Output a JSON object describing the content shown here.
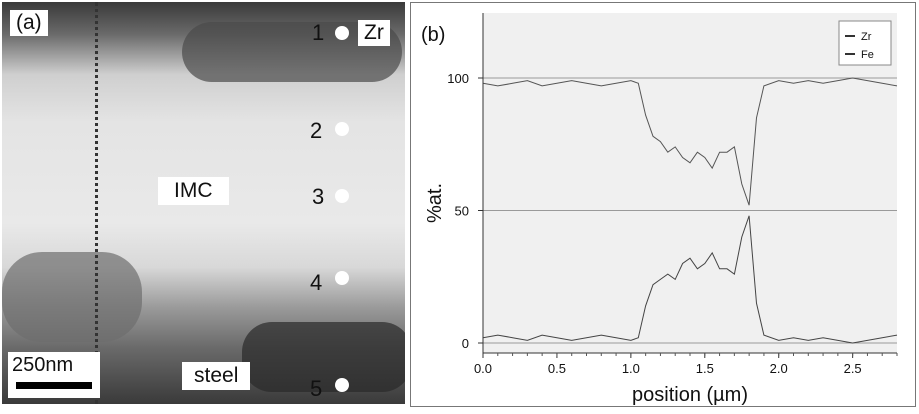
{
  "panel_a": {
    "label": "(a)",
    "zr_label": "Zr",
    "imc_label": "IMC",
    "steel_label": "steel",
    "scale_bar": "250nm",
    "points": [
      "1",
      "2",
      "3",
      "4",
      "5"
    ]
  },
  "panel_b": {
    "label": "(b)"
  },
  "chart_data": {
    "type": "line",
    "xlabel": "position (µm)",
    "ylabel": "%at.",
    "xlim": [
      0,
      2.8
    ],
    "ylim": [
      0,
      100
    ],
    "xticks": [
      "0.0",
      "0.5",
      "1.0",
      "1.5",
      "2.0",
      "2.5"
    ],
    "yticks": [
      "0",
      "50",
      "100"
    ],
    "grid": "horizontal",
    "legend_position": "top-right",
    "series": [
      {
        "name": "Zr",
        "x": [
          0.0,
          0.1,
          0.2,
          0.3,
          0.4,
          0.5,
          0.6,
          0.7,
          0.8,
          0.9,
          1.0,
          1.05,
          1.1,
          1.15,
          1.2,
          1.25,
          1.3,
          1.35,
          1.4,
          1.45,
          1.5,
          1.55,
          1.6,
          1.65,
          1.7,
          1.75,
          1.8,
          1.85,
          1.9,
          2.0,
          2.1,
          2.2,
          2.3,
          2.4,
          2.5,
          2.6,
          2.7,
          2.8
        ],
        "values": [
          98,
          97,
          98,
          99,
          97,
          98,
          99,
          98,
          97,
          98,
          99,
          98,
          86,
          78,
          76,
          72,
          74,
          70,
          68,
          72,
          70,
          66,
          72,
          72,
          74,
          60,
          52,
          85,
          97,
          99,
          98,
          99,
          98,
          99,
          100,
          99,
          98,
          97
        ]
      },
      {
        "name": "Fe",
        "x": [
          0.0,
          0.1,
          0.2,
          0.3,
          0.4,
          0.5,
          0.6,
          0.7,
          0.8,
          0.9,
          1.0,
          1.05,
          1.1,
          1.15,
          1.2,
          1.25,
          1.3,
          1.35,
          1.4,
          1.45,
          1.5,
          1.55,
          1.6,
          1.65,
          1.7,
          1.75,
          1.8,
          1.85,
          1.9,
          2.0,
          2.1,
          2.2,
          2.3,
          2.4,
          2.5,
          2.6,
          2.7,
          2.8
        ],
        "values": [
          2,
          3,
          2,
          1,
          3,
          2,
          1,
          2,
          3,
          2,
          1,
          2,
          14,
          22,
          24,
          26,
          24,
          30,
          32,
          28,
          30,
          34,
          28,
          28,
          26,
          40,
          48,
          15,
          3,
          1,
          2,
          1,
          2,
          1,
          0,
          1,
          2,
          3
        ]
      }
    ]
  }
}
